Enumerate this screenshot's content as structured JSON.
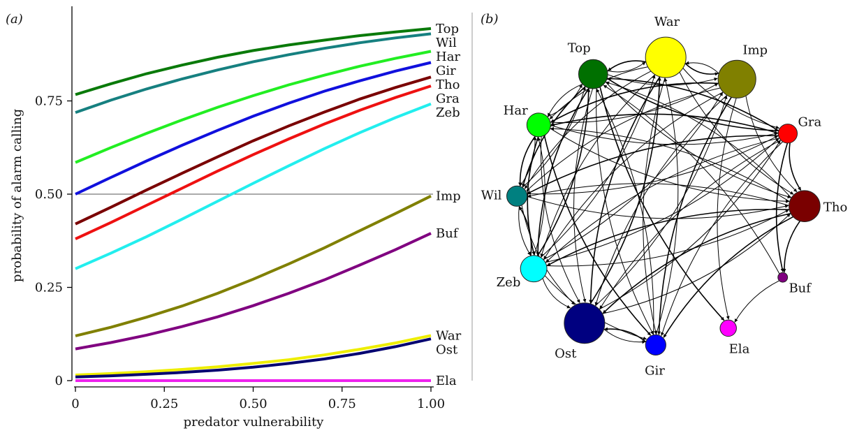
{
  "chart_data": [
    {
      "type": "line",
      "panel_label": "(a)",
      "xlabel": "predator vulnerability",
      "ylabel": "probability of alarm calling",
      "xlim": [
        0,
        1
      ],
      "ylim": [
        0,
        0.95
      ],
      "xticks": [
        "0",
        "0.25",
        "0.50",
        "0.75",
        "1.00"
      ],
      "xtick_values": [
        0,
        0.25,
        0.5,
        0.75,
        1.0
      ],
      "yticks": [
        "0",
        "0.25",
        "0.50",
        "0.75"
      ],
      "ytick_values": [
        0,
        0.25,
        0.5,
        0.75
      ],
      "reference_line_y": 0.5,
      "x": [
        0,
        0.1,
        0.2,
        0.3,
        0.4,
        0.5,
        0.6,
        0.7,
        0.8,
        0.9,
        1.0
      ],
      "series": [
        {
          "name": "Top",
          "color": "#0a7a0a",
          "values": [
            0.767,
            0.796,
            0.823,
            0.846,
            0.867,
            0.885,
            0.9,
            0.913,
            0.925,
            0.935,
            0.944
          ]
        },
        {
          "name": "Wil",
          "color": "#168080",
          "values": [
            0.719,
            0.752,
            0.782,
            0.809,
            0.833,
            0.855,
            0.874,
            0.891,
            0.906,
            0.919,
            0.93
          ]
        },
        {
          "name": "Har",
          "color": "#22ee22",
          "values": [
            0.585,
            0.625,
            0.663,
            0.699,
            0.733,
            0.764,
            0.793,
            0.819,
            0.843,
            0.864,
            0.883
          ]
        },
        {
          "name": "Gir",
          "color": "#1010dd",
          "values": [
            0.5,
            0.545,
            0.589,
            0.631,
            0.671,
            0.709,
            0.744,
            0.776,
            0.804,
            0.83,
            0.853
          ]
        },
        {
          "name": "Tho",
          "color": "#7a0000",
          "values": [
            0.42,
            0.465,
            0.511,
            0.556,
            0.6,
            0.643,
            0.683,
            0.72,
            0.755,
            0.786,
            0.814
          ]
        },
        {
          "name": "Gra",
          "color": "#ee1111",
          "values": [
            0.38,
            0.424,
            0.47,
            0.516,
            0.562,
            0.606,
            0.648,
            0.688,
            0.725,
            0.759,
            0.79
          ]
        },
        {
          "name": "Zeb",
          "color": "#22eeee",
          "values": [
            0.3,
            0.342,
            0.386,
            0.433,
            0.481,
            0.529,
            0.576,
            0.622,
            0.665,
            0.705,
            0.742
          ]
        },
        {
          "name": "Imp",
          "color": "#808000",
          "values": [
            0.12,
            0.143,
            0.17,
            0.2,
            0.234,
            0.272,
            0.313,
            0.356,
            0.402,
            0.448,
            0.495
          ]
        },
        {
          "name": "Buf",
          "color": "#800080",
          "values": [
            0.085,
            0.102,
            0.122,
            0.145,
            0.171,
            0.201,
            0.234,
            0.27,
            0.31,
            0.351,
            0.395
          ]
        },
        {
          "name": "War",
          "color": "#eeee00",
          "values": [
            0.015,
            0.019,
            0.024,
            0.03,
            0.037,
            0.046,
            0.056,
            0.069,
            0.084,
            0.101,
            0.121
          ]
        },
        {
          "name": "Ost",
          "color": "#000070",
          "values": [
            0.01,
            0.013,
            0.017,
            0.022,
            0.028,
            0.036,
            0.046,
            0.058,
            0.073,
            0.091,
            0.112
          ]
        },
        {
          "name": "Ela",
          "color": "#ee22ee",
          "values": [
            0.0,
            0.0,
            0.0,
            0.0,
            0.0,
            0.0,
            0.0,
            0.0,
            0.0,
            0.0,
            0.0
          ]
        }
      ]
    },
    {
      "type": "network",
      "panel_label": "(b)",
      "nodes": [
        {
          "id": "War",
          "label": "War",
          "color": "#ffff00",
          "size": 1.0
        },
        {
          "id": "Imp",
          "label": "Imp",
          "color": "#808000",
          "size": 0.92
        },
        {
          "id": "Gra",
          "label": "Gra",
          "color": "#ff0000",
          "size": 0.36
        },
        {
          "id": "Tho",
          "label": "Tho",
          "color": "#7a0000",
          "size": 0.72
        },
        {
          "id": "Buf",
          "label": "Buf",
          "color": "#800080",
          "size": 0.08
        },
        {
          "id": "Ela",
          "label": "Ela",
          "color": "#ff00ff",
          "size": 0.28
        },
        {
          "id": "Gir",
          "label": "Gir",
          "color": "#0000ff",
          "size": 0.4
        },
        {
          "id": "Ost",
          "label": "Ost",
          "color": "#000080",
          "size": 1.0
        },
        {
          "id": "Zeb",
          "label": "Zeb",
          "color": "#00ffff",
          "size": 0.58
        },
        {
          "id": "Wil",
          "label": "Wil",
          "color": "#008080",
          "size": 0.4
        },
        {
          "id": "Har",
          "label": "Har",
          "color": "#00ff00",
          "size": 0.5
        },
        {
          "id": "Top",
          "label": "Top",
          "color": "#007000",
          "size": 0.66
        }
      ],
      "edges": [
        [
          "War",
          "Imp"
        ],
        [
          "Imp",
          "War"
        ],
        [
          "Top",
          "War"
        ],
        [
          "War",
          "Top"
        ],
        [
          "Har",
          "Top"
        ],
        [
          "Top",
          "Har"
        ],
        [
          "Gra",
          "Tho"
        ],
        [
          "Imp",
          "Tho"
        ],
        [
          "War",
          "Gra"
        ],
        [
          "Top",
          "Gra"
        ],
        [
          "Top",
          "Tho"
        ],
        [
          "Top",
          "Imp"
        ],
        [
          "Har",
          "Wil"
        ],
        [
          "Wil",
          "Har"
        ],
        [
          "Wil",
          "Zeb"
        ],
        [
          "Zeb",
          "Wil"
        ],
        [
          "Zeb",
          "Ost"
        ],
        [
          "Zeb",
          "Gir"
        ],
        [
          "Gir",
          "Ost"
        ],
        [
          "Ost",
          "Gir"
        ],
        [
          "Har",
          "Gra"
        ],
        [
          "Gra",
          "Har"
        ],
        [
          "Tho",
          "Wil"
        ],
        [
          "Wil",
          "Tho"
        ],
        [
          "Tho",
          "Zeb"
        ],
        [
          "Zeb",
          "Tho"
        ],
        [
          "Gra",
          "Zeb"
        ],
        [
          "Gra",
          "Wil"
        ],
        [
          "Gra",
          "Ost"
        ],
        [
          "Imp",
          "Ost"
        ],
        [
          "War",
          "Ost"
        ],
        [
          "Top",
          "Ost"
        ],
        [
          "Har",
          "Ost"
        ],
        [
          "Tho",
          "Ost"
        ],
        [
          "Wil",
          "Ost"
        ],
        [
          "War",
          "Gir"
        ],
        [
          "Imp",
          "Gir"
        ],
        [
          "Gra",
          "Gir"
        ],
        [
          "Top",
          "Gir"
        ],
        [
          "Har",
          "Gir"
        ],
        [
          "Imp",
          "Zeb"
        ],
        [
          "War",
          "Zeb"
        ],
        [
          "Top",
          "Zeb"
        ],
        [
          "Imp",
          "Wil"
        ],
        [
          "War",
          "Wil"
        ],
        [
          "Top",
          "Ela"
        ],
        [
          "Imp",
          "Ela"
        ],
        [
          "War",
          "Har"
        ],
        [
          "Imp",
          "Har"
        ],
        [
          "Har",
          "Tho"
        ],
        [
          "Tho",
          "Har"
        ],
        [
          "Tho",
          "Buf"
        ],
        [
          "Buf",
          "Ela"
        ],
        [
          "Zeb",
          "Gra"
        ],
        [
          "Gra",
          "Top"
        ],
        [
          "Tho",
          "Top"
        ],
        [
          "War",
          "Tho"
        ],
        [
          "Tho",
          "Gir"
        ],
        [
          "Zeb",
          "Imp"
        ],
        [
          "Zeb",
          "War"
        ],
        [
          "Zeb",
          "Top"
        ],
        [
          "Wil",
          "Gra"
        ],
        [
          "Gir",
          "War"
        ],
        [
          "Ost",
          "War"
        ],
        [
          "Ost",
          "Imp"
        ],
        [
          "Gir",
          "Top"
        ],
        [
          "Har",
          "Zeb"
        ],
        [
          "Zeb",
          "Har"
        ],
        [
          "Wil",
          "Top"
        ],
        [
          "Top",
          "Wil"
        ],
        [
          "Ost",
          "Tho"
        ],
        [
          "Buf",
          "Top"
        ],
        [
          "Gra",
          "Buf"
        ],
        [
          "Har",
          "Imp"
        ],
        [
          "Ost",
          "Gra"
        ]
      ]
    }
  ]
}
